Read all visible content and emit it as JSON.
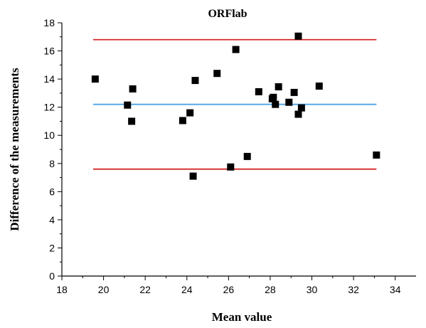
{
  "chart_data": {
    "type": "scatter",
    "title": "ORFlab",
    "xlabel": "Mean value",
    "ylabel": "Difference of the measurements",
    "xlim": [
      18,
      35
    ],
    "ylim": [
      0,
      18
    ],
    "xticks": [
      18,
      20,
      22,
      24,
      26,
      28,
      30,
      32,
      34
    ],
    "yticks": [
      0,
      2,
      4,
      6,
      8,
      10,
      12,
      14,
      16,
      18
    ],
    "grid": false,
    "legend": "none",
    "marker": "square",
    "marker_color": "#000000",
    "points": [
      {
        "x": 19.6,
        "y": 14.0
      },
      {
        "x": 21.15,
        "y": 12.15
      },
      {
        "x": 21.35,
        "y": 11.0
      },
      {
        "x": 21.4,
        "y": 13.3
      },
      {
        "x": 23.8,
        "y": 11.05
      },
      {
        "x": 24.15,
        "y": 11.6
      },
      {
        "x": 24.3,
        "y": 7.1
      },
      {
        "x": 24.4,
        "y": 13.9
      },
      {
        "x": 25.45,
        "y": 14.4
      },
      {
        "x": 26.1,
        "y": 7.75
      },
      {
        "x": 26.35,
        "y": 16.1
      },
      {
        "x": 26.9,
        "y": 8.5
      },
      {
        "x": 27.45,
        "y": 13.1
      },
      {
        "x": 28.1,
        "y": 12.6
      },
      {
        "x": 28.15,
        "y": 12.7
      },
      {
        "x": 28.25,
        "y": 12.2
      },
      {
        "x": 28.4,
        "y": 13.45
      },
      {
        "x": 28.9,
        "y": 12.35
      },
      {
        "x": 29.15,
        "y": 13.05
      },
      {
        "x": 29.35,
        "y": 11.5
      },
      {
        "x": 29.35,
        "y": 17.05
      },
      {
        "x": 29.5,
        "y": 11.95
      },
      {
        "x": 30.35,
        "y": 13.5
      },
      {
        "x": 33.1,
        "y": 8.6
      }
    ],
    "reference_lines": [
      {
        "y": 16.8,
        "color": "#d62728"
      },
      {
        "y": 12.2,
        "color": "#4da3e8"
      },
      {
        "y": 7.6,
        "color": "#d62728"
      }
    ],
    "reference_line_x_range": [
      19.5,
      33.1
    ]
  }
}
